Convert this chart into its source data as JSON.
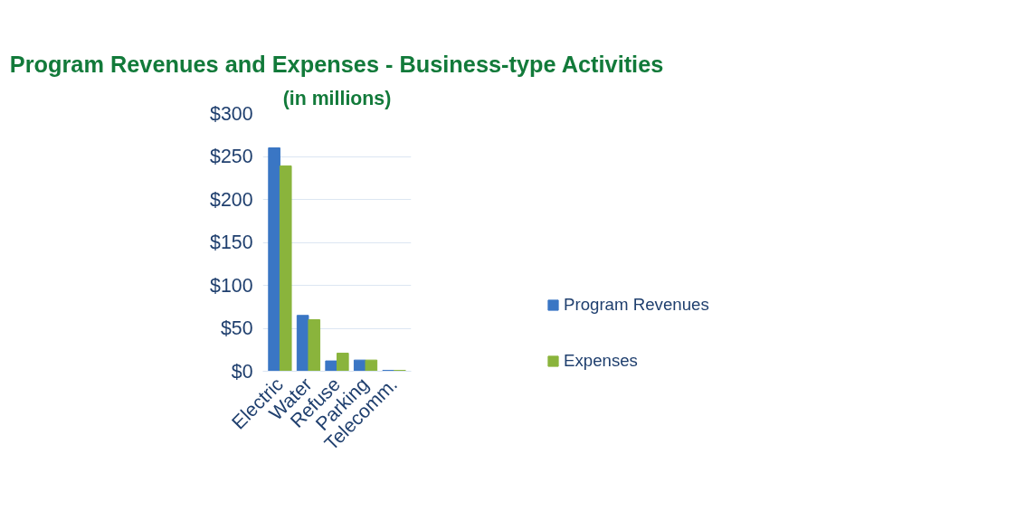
{
  "chart_data": {
    "type": "bar",
    "title": "Program Revenues and Expenses - Business-type Activities",
    "subtitle": "(in millions)",
    "categories": [
      "Electric",
      "Water",
      "Refuse",
      "Parking",
      "Telecomm."
    ],
    "series": [
      {
        "name": "Program Revenues",
        "color": "#3a76c4",
        "values": [
          260,
          65,
          12,
          13,
          1
        ]
      },
      {
        "name": "Expenses",
        "color": "#8ab43c",
        "values": [
          239,
          60,
          21,
          13,
          1
        ]
      }
    ],
    "ylim": [
      0,
      300
    ],
    "yticks": [
      {
        "value": 0,
        "label": "$0"
      },
      {
        "value": 50,
        "label": "$50"
      },
      {
        "value": 100,
        "label": "$100"
      },
      {
        "value": 150,
        "label": "$150"
      },
      {
        "value": 200,
        "label": "$200"
      },
      {
        "value": 250,
        "label": "$250"
      },
      {
        "value": 300,
        "label": "$300"
      }
    ],
    "grid": "y",
    "legend": "right"
  }
}
